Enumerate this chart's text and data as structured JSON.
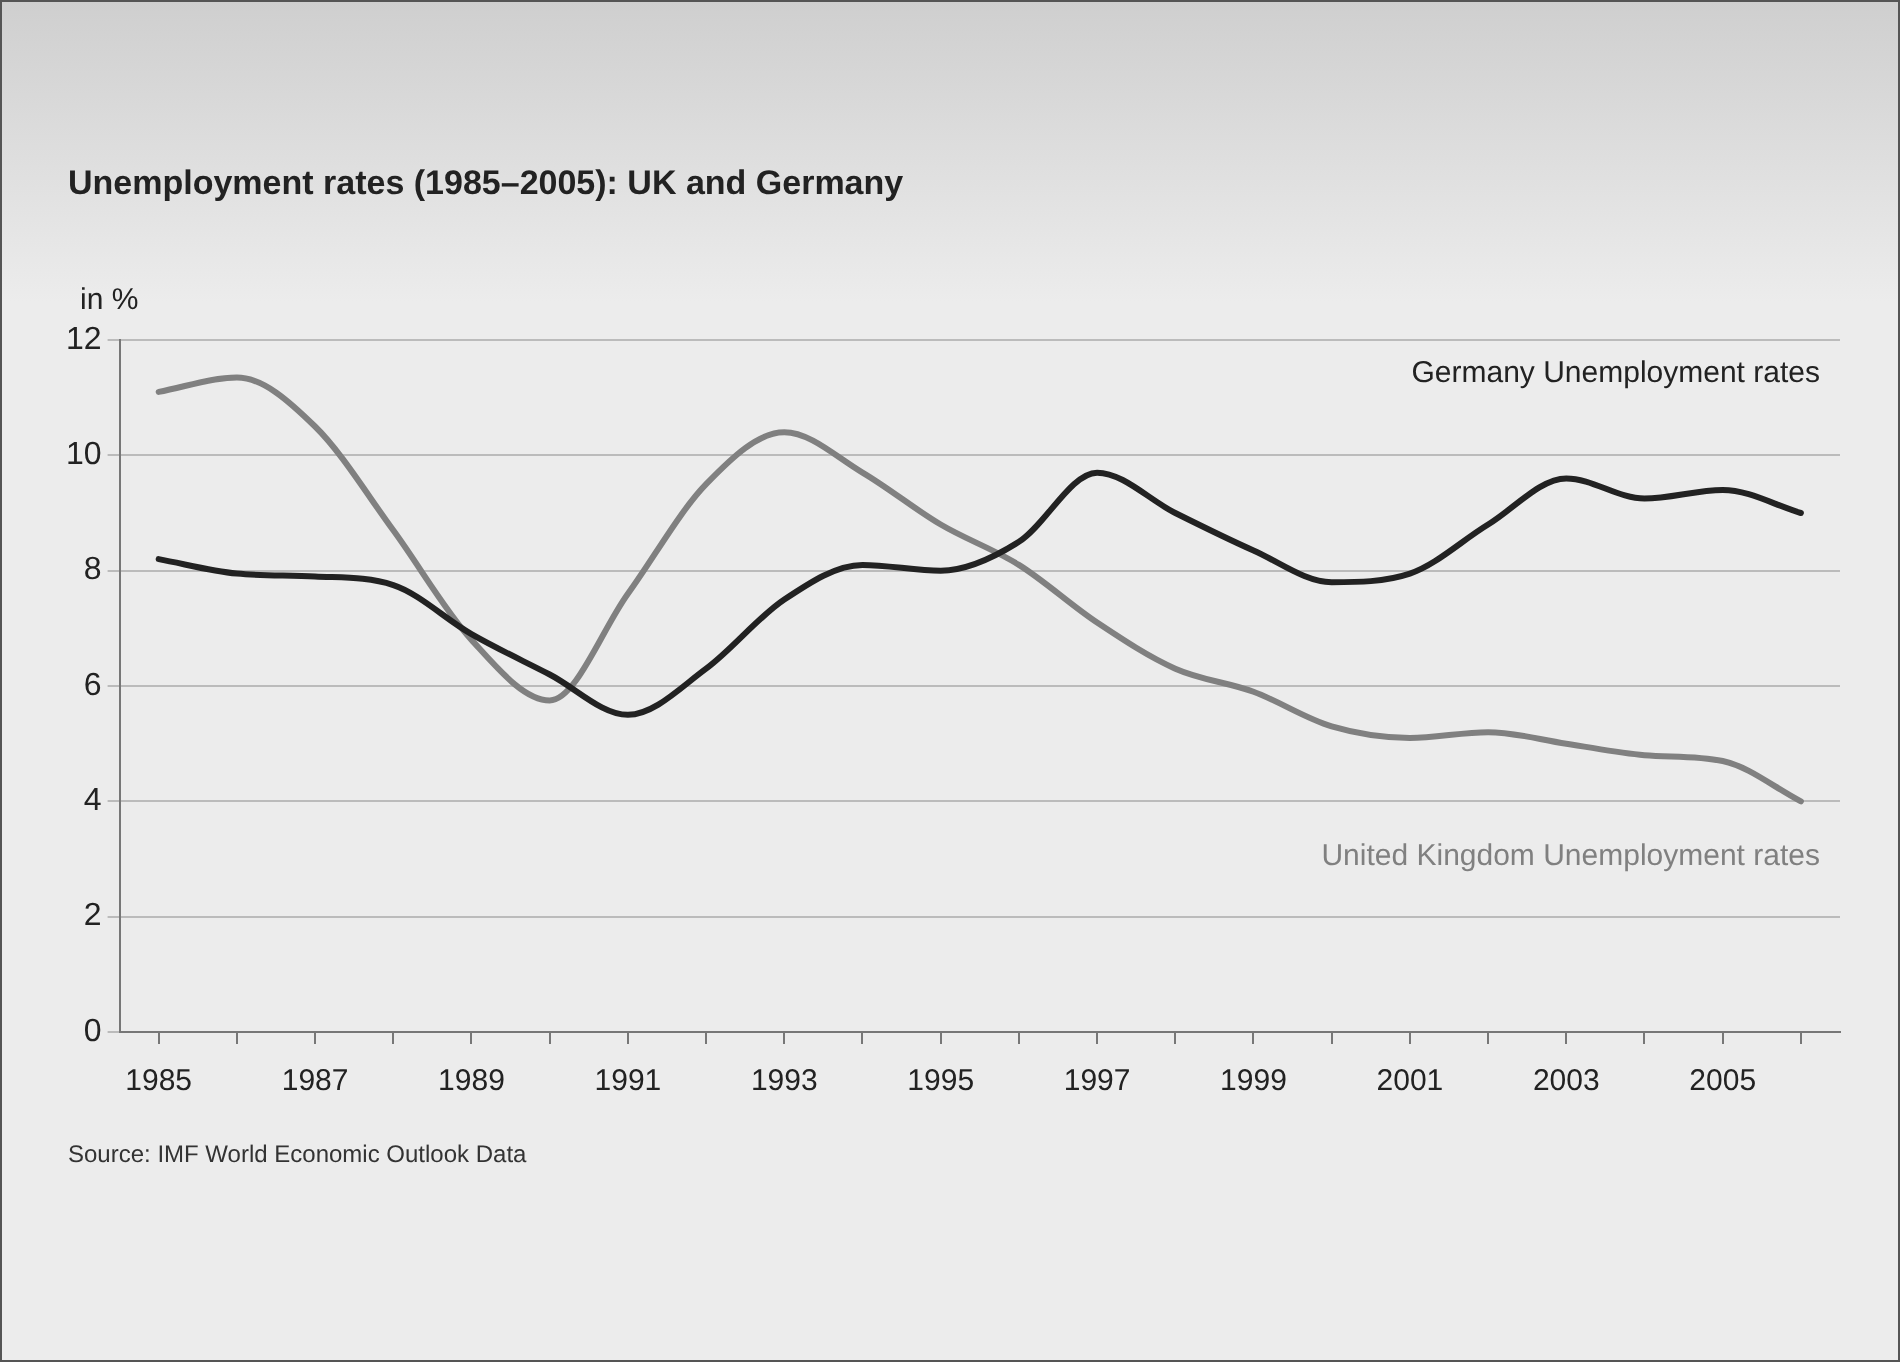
{
  "chart_data": {
    "type": "line",
    "title": "Unemployment rates (1985–2005): UK and Germany",
    "ylabel": "in %",
    "annotations": [
      "Source: IMF World Economic Outlook Data"
    ],
    "categories": [
      "1985",
      null,
      "1987",
      null,
      "1989",
      null,
      "1991",
      null,
      "1993",
      null,
      "1995",
      null,
      "1997",
      null,
      "1999",
      null,
      "2001",
      null,
      "2003",
      null,
      "2005",
      null
    ],
    "series": [
      {
        "name": "Germany Unemployment rates",
        "color": "#222222",
        "values": [
          8.2,
          7.95,
          7.9,
          7.75,
          6.9,
          6.2,
          5.5,
          6.3,
          7.5,
          8.1,
          8.0,
          8.5,
          9.7,
          9.0,
          8.35,
          7.8,
          7.95,
          8.8,
          9.6,
          9.25,
          9.4,
          9.0
        ]
      },
      {
        "name": "United Kingdom Unemployment rates",
        "color": "#808080",
        "values": [
          11.1,
          11.35,
          10.5,
          8.7,
          6.8,
          5.75,
          7.6,
          9.5,
          10.4,
          9.7,
          8.8,
          8.1,
          7.1,
          6.3,
          5.9,
          5.3,
          5.1,
          5.2,
          5.0,
          4.8,
          4.7,
          4.0
        ]
      }
    ],
    "ylim": [
      0,
      12
    ],
    "yticks": [
      0,
      2,
      4,
      6,
      8,
      10,
      12
    ],
    "grid": "y",
    "legend": false,
    "marker": "none",
    "line_style": "solid"
  }
}
